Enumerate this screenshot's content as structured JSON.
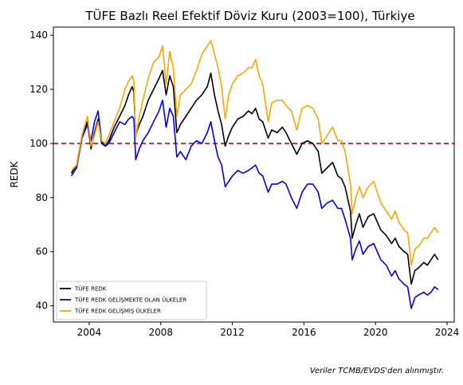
{
  "chart_data": {
    "type": "line",
    "title": "TÜFE Bazlı Reel Efektif Döviz Kuru (2003=100), Türkiye",
    "xlabel": "",
    "ylabel": "REDK",
    "xlim": [
      2002.0,
      2024.4
    ],
    "ylim": [
      34,
      143
    ],
    "xticks": [
      2004,
      2008,
      2012,
      2016,
      2020,
      2024
    ],
    "yticks": [
      40,
      60,
      80,
      100,
      120,
      140
    ],
    "grid": false,
    "legend_position": "lower-left",
    "reference_line": {
      "y": 100,
      "color": "#dd0000",
      "style": "dashed"
    },
    "footnote": "Veriler TCMB/EVDS'den alınmıştır.",
    "series": [
      {
        "name": "TÜFE REDK",
        "color": "#000000",
        "points": [
          [
            2003.0,
            89
          ],
          [
            2003.3,
            92
          ],
          [
            2003.6,
            103
          ],
          [
            2003.9,
            108
          ],
          [
            2004.1,
            98
          ],
          [
            2004.3,
            104
          ],
          [
            2004.5,
            109
          ],
          [
            2004.7,
            100
          ],
          [
            2004.9,
            99
          ],
          [
            2005.1,
            101
          ],
          [
            2005.4,
            106
          ],
          [
            2005.7,
            110
          ],
          [
            2006.0,
            114
          ],
          [
            2006.2,
            118
          ],
          [
            2006.4,
            121
          ],
          [
            2006.5,
            119
          ],
          [
            2006.6,
            103
          ],
          [
            2006.8,
            107
          ],
          [
            2007.0,
            110
          ],
          [
            2007.3,
            116
          ],
          [
            2007.6,
            120
          ],
          [
            2007.9,
            124
          ],
          [
            2008.1,
            127
          ],
          [
            2008.3,
            118
          ],
          [
            2008.5,
            125
          ],
          [
            2008.7,
            121
          ],
          [
            2008.9,
            104
          ],
          [
            2009.1,
            107
          ],
          [
            2009.4,
            110
          ],
          [
            2009.7,
            113
          ],
          [
            2010.0,
            116
          ],
          [
            2010.3,
            118
          ],
          [
            2010.6,
            121
          ],
          [
            2010.8,
            126
          ],
          [
            2011.0,
            118
          ],
          [
            2011.2,
            112
          ],
          [
            2011.4,
            107
          ],
          [
            2011.6,
            99
          ],
          [
            2011.8,
            103
          ],
          [
            2012.0,
            106
          ],
          [
            2012.3,
            109
          ],
          [
            2012.6,
            110
          ],
          [
            2012.9,
            112
          ],
          [
            2013.1,
            111
          ],
          [
            2013.3,
            113
          ],
          [
            2013.5,
            109
          ],
          [
            2013.7,
            108
          ],
          [
            2014.0,
            102
          ],
          [
            2014.2,
            105
          ],
          [
            2014.5,
            104
          ],
          [
            2014.8,
            106
          ],
          [
            2015.0,
            104
          ],
          [
            2015.3,
            100
          ],
          [
            2015.6,
            96
          ],
          [
            2015.9,
            100
          ],
          [
            2016.2,
            101
          ],
          [
            2016.5,
            100
          ],
          [
            2016.8,
            97
          ],
          [
            2017.0,
            89
          ],
          [
            2017.3,
            91
          ],
          [
            2017.6,
            93
          ],
          [
            2017.9,
            88
          ],
          [
            2018.1,
            87
          ],
          [
            2018.3,
            84
          ],
          [
            2018.6,
            75
          ],
          [
            2018.7,
            65
          ],
          [
            2018.9,
            70
          ],
          [
            2019.1,
            74
          ],
          [
            2019.3,
            69
          ],
          [
            2019.6,
            73
          ],
          [
            2019.9,
            74
          ],
          [
            2020.1,
            71
          ],
          [
            2020.3,
            68
          ],
          [
            2020.6,
            66
          ],
          [
            2020.9,
            63
          ],
          [
            2021.1,
            65
          ],
          [
            2021.3,
            62
          ],
          [
            2021.6,
            60
          ],
          [
            2021.8,
            59
          ],
          [
            2022.0,
            48
          ],
          [
            2022.2,
            53
          ],
          [
            2022.4,
            54
          ],
          [
            2022.7,
            56
          ],
          [
            2022.9,
            55
          ],
          [
            2023.1,
            57
          ],
          [
            2023.3,
            59
          ],
          [
            2023.5,
            57
          ]
        ]
      },
      {
        "name": "TÜFE REDK GELİŞMEKTE OLAN ÜLKELER",
        "color": "#0000ee",
        "points": [
          [
            2003.0,
            88
          ],
          [
            2003.3,
            91
          ],
          [
            2003.6,
            102
          ],
          [
            2003.9,
            107
          ],
          [
            2004.1,
            101
          ],
          [
            2004.3,
            108
          ],
          [
            2004.5,
            112
          ],
          [
            2004.7,
            101
          ],
          [
            2004.9,
            99
          ],
          [
            2005.1,
            100
          ],
          [
            2005.4,
            104
          ],
          [
            2005.7,
            108
          ],
          [
            2006.0,
            107
          ],
          [
            2006.2,
            109
          ],
          [
            2006.4,
            110
          ],
          [
            2006.5,
            109
          ],
          [
            2006.6,
            94
          ],
          [
            2006.8,
            98
          ],
          [
            2007.0,
            101
          ],
          [
            2007.3,
            104
          ],
          [
            2007.6,
            108
          ],
          [
            2007.9,
            112
          ],
          [
            2008.1,
            116
          ],
          [
            2008.3,
            106
          ],
          [
            2008.5,
            113
          ],
          [
            2008.7,
            110
          ],
          [
            2008.9,
            95
          ],
          [
            2009.1,
            97
          ],
          [
            2009.4,
            94
          ],
          [
            2009.7,
            99
          ],
          [
            2010.0,
            101
          ],
          [
            2010.3,
            100
          ],
          [
            2010.6,
            104
          ],
          [
            2010.8,
            108
          ],
          [
            2011.0,
            101
          ],
          [
            2011.2,
            95
          ],
          [
            2011.4,
            92
          ],
          [
            2011.6,
            84
          ],
          [
            2011.8,
            86
          ],
          [
            2012.0,
            88
          ],
          [
            2012.3,
            90
          ],
          [
            2012.6,
            89
          ],
          [
            2012.9,
            90
          ],
          [
            2013.1,
            91
          ],
          [
            2013.3,
            92
          ],
          [
            2013.5,
            89
          ],
          [
            2013.7,
            88
          ],
          [
            2014.0,
            82
          ],
          [
            2014.2,
            85
          ],
          [
            2014.5,
            85
          ],
          [
            2014.8,
            86
          ],
          [
            2015.0,
            85
          ],
          [
            2015.3,
            80
          ],
          [
            2015.6,
            76
          ],
          [
            2015.9,
            82
          ],
          [
            2016.2,
            85
          ],
          [
            2016.5,
            85
          ],
          [
            2016.8,
            82
          ],
          [
            2017.0,
            76
          ],
          [
            2017.3,
            78
          ],
          [
            2017.6,
            79
          ],
          [
            2017.9,
            76
          ],
          [
            2018.1,
            76
          ],
          [
            2018.3,
            72
          ],
          [
            2018.6,
            65
          ],
          [
            2018.7,
            57
          ],
          [
            2018.9,
            61
          ],
          [
            2019.1,
            64
          ],
          [
            2019.3,
            59
          ],
          [
            2019.6,
            62
          ],
          [
            2019.9,
            63
          ],
          [
            2020.1,
            60
          ],
          [
            2020.3,
            57
          ],
          [
            2020.6,
            55
          ],
          [
            2020.9,
            51
          ],
          [
            2021.1,
            53
          ],
          [
            2021.3,
            50
          ],
          [
            2021.6,
            48
          ],
          [
            2021.8,
            47
          ],
          [
            2022.0,
            39
          ],
          [
            2022.2,
            43
          ],
          [
            2022.4,
            44
          ],
          [
            2022.7,
            45
          ],
          [
            2022.9,
            44
          ],
          [
            2023.1,
            45
          ],
          [
            2023.3,
            47
          ],
          [
            2023.5,
            46
          ]
        ]
      },
      {
        "name": "TÜFE REDK GELİŞMİŞ ÜLKELER",
        "color": "#ffa500",
        "points": [
          [
            2003.0,
            90
          ],
          [
            2003.3,
            92
          ],
          [
            2003.6,
            103
          ],
          [
            2003.9,
            110
          ],
          [
            2004.1,
            99
          ],
          [
            2004.3,
            103
          ],
          [
            2004.5,
            108
          ],
          [
            2004.7,
            101
          ],
          [
            2004.9,
            100
          ],
          [
            2005.1,
            103
          ],
          [
            2005.4,
            108
          ],
          [
            2005.7,
            113
          ],
          [
            2006.0,
            120
          ],
          [
            2006.2,
            123
          ],
          [
            2006.4,
            125
          ],
          [
            2006.5,
            123
          ],
          [
            2006.6,
            102
          ],
          [
            2006.8,
            110
          ],
          [
            2007.0,
            116
          ],
          [
            2007.3,
            124
          ],
          [
            2007.6,
            130
          ],
          [
            2007.9,
            132
          ],
          [
            2008.1,
            136
          ],
          [
            2008.3,
            122
          ],
          [
            2008.5,
            134
          ],
          [
            2008.7,
            128
          ],
          [
            2008.9,
            110
          ],
          [
            2009.1,
            118
          ],
          [
            2009.4,
            120
          ],
          [
            2009.7,
            122
          ],
          [
            2010.0,
            127
          ],
          [
            2010.3,
            133
          ],
          [
            2010.6,
            136
          ],
          [
            2010.8,
            138
          ],
          [
            2011.0,
            133
          ],
          [
            2011.2,
            128
          ],
          [
            2011.4,
            121
          ],
          [
            2011.6,
            109
          ],
          [
            2011.8,
            118
          ],
          [
            2012.0,
            122
          ],
          [
            2012.3,
            125
          ],
          [
            2012.6,
            126
          ],
          [
            2012.9,
            128
          ],
          [
            2013.1,
            128
          ],
          [
            2013.3,
            131
          ],
          [
            2013.5,
            125
          ],
          [
            2013.7,
            122
          ],
          [
            2014.0,
            108
          ],
          [
            2014.2,
            115
          ],
          [
            2014.5,
            116
          ],
          [
            2014.8,
            116
          ],
          [
            2015.0,
            114
          ],
          [
            2015.3,
            112
          ],
          [
            2015.6,
            105
          ],
          [
            2015.9,
            113
          ],
          [
            2016.2,
            114
          ],
          [
            2016.5,
            113
          ],
          [
            2016.8,
            109
          ],
          [
            2017.0,
            100
          ],
          [
            2017.3,
            103
          ],
          [
            2017.6,
            106
          ],
          [
            2017.9,
            101
          ],
          [
            2018.1,
            101
          ],
          [
            2018.3,
            97
          ],
          [
            2018.6,
            85
          ],
          [
            2018.7,
            74
          ],
          [
            2018.9,
            80
          ],
          [
            2019.1,
            84
          ],
          [
            2019.3,
            80
          ],
          [
            2019.6,
            84
          ],
          [
            2019.9,
            86
          ],
          [
            2020.1,
            82
          ],
          [
            2020.3,
            78
          ],
          [
            2020.6,
            75
          ],
          [
            2020.9,
            72
          ],
          [
            2021.1,
            75
          ],
          [
            2021.3,
            71
          ],
          [
            2021.6,
            68
          ],
          [
            2021.8,
            67
          ],
          [
            2022.0,
            55
          ],
          [
            2022.2,
            61
          ],
          [
            2022.4,
            62
          ],
          [
            2022.7,
            65
          ],
          [
            2022.9,
            65
          ],
          [
            2023.1,
            67
          ],
          [
            2023.3,
            69
          ],
          [
            2023.5,
            67
          ]
        ]
      }
    ]
  }
}
